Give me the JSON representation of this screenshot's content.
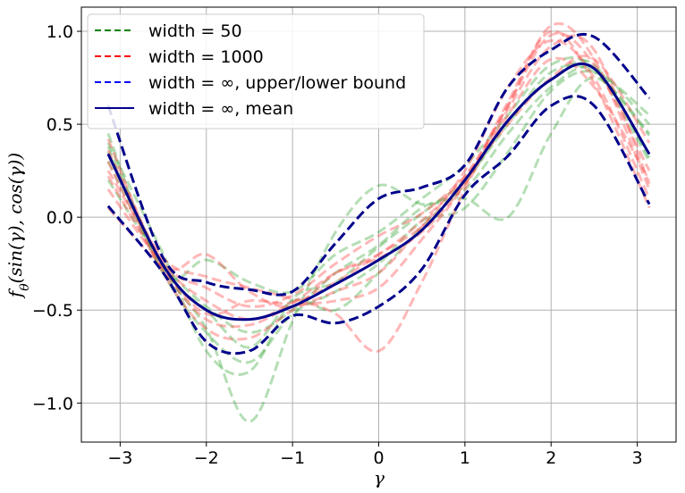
{
  "chart_data": {
    "type": "line",
    "xlabel": "γ",
    "ylabel": "f_θ(sin(γ), cos(γ))",
    "xlim": [
      -3.45,
      3.45
    ],
    "ylim": [
      -1.21,
      1.13
    ],
    "xticks": [
      -3,
      -2,
      -1,
      0,
      1,
      2,
      3
    ],
    "xtick_labels": [
      "−3",
      "−2",
      "−1",
      "0",
      "1",
      "2",
      "3"
    ],
    "yticks": [
      -1.0,
      -0.5,
      0.0,
      0.5,
      1.0
    ],
    "ytick_labels": [
      "−1.0",
      "−0.5",
      "0.0",
      "0.5",
      "1.0"
    ],
    "grid": true,
    "legend_position": "top-left",
    "colors": {
      "width50": "#2ca02c",
      "width1000": "#ff4a4a",
      "bound": "#00008b",
      "mean": "#00008b",
      "legend_width50": "#008000",
      "legend_width1000": "#ff0000",
      "legend_bound": "#0000ff"
    },
    "legend": [
      {
        "label": "width = 50",
        "style": "dashed",
        "color": "#008000"
      },
      {
        "label": "width = 1000",
        "style": "dashed",
        "color": "#ff0000"
      },
      {
        "label": "width = ∞, upper/lower bound",
        "style": "dashed",
        "color": "#0000ff"
      },
      {
        "label": "width = ∞, mean",
        "style": "solid",
        "color": "#00008b"
      }
    ],
    "x": [
      -3.14,
      -2.5,
      -2.0,
      -1.5,
      -1.0,
      -0.5,
      0.0,
      0.5,
      1.0,
      1.5,
      2.0,
      2.5,
      3.14
    ],
    "series": [
      {
        "group": "width = ∞, mean",
        "values": [
          0.34,
          -0.26,
          -0.5,
          -0.55,
          -0.48,
          -0.36,
          -0.23,
          -0.07,
          0.2,
          0.52,
          0.74,
          0.8,
          0.34
        ]
      },
      {
        "group": "width = ∞, upper/lower bound",
        "values": [
          0.6,
          -0.22,
          -0.35,
          -0.39,
          -0.4,
          -0.14,
          0.1,
          0.16,
          0.28,
          0.7,
          0.9,
          0.97,
          0.64
        ]
      },
      {
        "group": "width = ∞, upper/lower bound",
        "values": [
          0.06,
          -0.3,
          -0.67,
          -0.72,
          -0.53,
          -0.57,
          -0.48,
          -0.28,
          0.12,
          0.33,
          0.6,
          0.6,
          0.07
        ]
      },
      {
        "group": "width = 50",
        "values": [
          0.4,
          -0.2,
          -0.72,
          -0.83,
          -0.44,
          -0.35,
          -0.16,
          0.02,
          0.2,
          0.5,
          0.78,
          0.78,
          0.44
        ]
      },
      {
        "group": "width = 50",
        "values": [
          0.3,
          -0.28,
          -0.6,
          -1.1,
          -0.56,
          -0.08,
          0.17,
          0.07,
          0.1,
          0.0,
          0.45,
          0.75,
          0.45
        ]
      },
      {
        "group": "width = 50",
        "values": [
          0.45,
          -0.3,
          -0.23,
          -0.35,
          -0.4,
          -0.2,
          -0.08,
          0.1,
          0.28,
          0.55,
          0.82,
          0.8,
          0.3
        ]
      },
      {
        "group": "width = 50",
        "values": [
          0.38,
          -0.27,
          -0.5,
          -0.7,
          -0.45,
          -0.5,
          -0.3,
          -0.05,
          0.18,
          0.52,
          0.74,
          0.82,
          0.32
        ]
      },
      {
        "group": "width = 50",
        "values": [
          0.2,
          -0.25,
          -0.48,
          -0.62,
          -0.5,
          -0.3,
          -0.15,
          0.05,
          0.15,
          0.45,
          0.7,
          0.8,
          0.5
        ]
      },
      {
        "group": "width = 50",
        "values": [
          0.35,
          -0.3,
          -0.62,
          -0.78,
          -0.52,
          -0.4,
          -0.25,
          -0.02,
          0.05,
          0.35,
          0.68,
          0.78,
          0.55
        ]
      },
      {
        "group": "width = 1000",
        "values": [
          0.42,
          -0.25,
          -0.2,
          -0.4,
          -0.48,
          -0.3,
          -0.2,
          -0.02,
          0.22,
          0.6,
          1.03,
          0.85,
          0.15
        ]
      },
      {
        "group": "width = 1000",
        "values": [
          0.25,
          -0.22,
          -0.32,
          -0.38,
          -0.44,
          -0.52,
          -0.72,
          -0.35,
          0.15,
          0.58,
          0.92,
          0.9,
          0.18
        ]
      },
      {
        "group": "width = 1000",
        "values": [
          0.05,
          -0.28,
          -0.52,
          -0.45,
          -0.46,
          -0.35,
          -0.2,
          -0.05,
          0.2,
          0.6,
          0.98,
          0.82,
          0.25
        ]
      },
      {
        "group": "width = 1000",
        "values": [
          0.3,
          -0.3,
          -0.6,
          -0.65,
          -0.5,
          -0.4,
          -0.3,
          -0.05,
          0.25,
          0.7,
          0.95,
          0.75,
          0.1
        ]
      },
      {
        "group": "width = 1000",
        "values": [
          0.15,
          -0.26,
          -0.45,
          -0.55,
          -0.46,
          -0.3,
          -0.22,
          -0.08,
          0.18,
          0.55,
          0.85,
          0.7,
          0.2
        ]
      },
      {
        "group": "width = 1000",
        "values": [
          0.36,
          -0.24,
          -0.38,
          -0.48,
          -0.42,
          -0.25,
          -0.1,
          0.02,
          0.22,
          0.5,
          0.75,
          0.85,
          0.4
        ]
      },
      {
        "group": "width = 1000",
        "values": [
          0.22,
          -0.28,
          -0.55,
          -0.58,
          -0.48,
          -0.45,
          -0.38,
          -0.12,
          0.18,
          0.62,
          1.0,
          0.72,
          0.05
        ]
      }
    ]
  }
}
